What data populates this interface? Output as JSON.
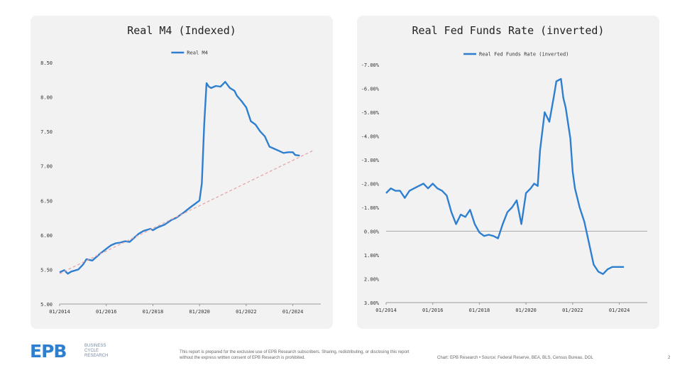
{
  "chart_data": [
    {
      "type": "line",
      "title": "Real M4 (Indexed)",
      "legend": "Real M4",
      "legend_position": "top-center",
      "grid": false,
      "x_ticks": [
        "01/2014",
        "01/2016",
        "01/2018",
        "01/2020",
        "01/2022",
        "01/2024"
      ],
      "y_ticks": [
        "8.50",
        "8.00",
        "7.50",
        "7.00",
        "6.50",
        "6.00",
        "5.50",
        "5.00"
      ],
      "ylim": [
        5.0,
        8.5
      ],
      "xlim": [
        2014.0,
        2025.2
      ],
      "colors": {
        "series": "#2f7fd1",
        "trend": "#e8a0a0"
      },
      "series": [
        {
          "name": "Real M4",
          "x": [
            2014.0,
            2014.2,
            2014.35,
            2014.5,
            2014.8,
            2015.0,
            2015.15,
            2015.4,
            2015.7,
            2016.0,
            2016.2,
            2016.4,
            2016.6,
            2016.8,
            2017.0,
            2017.2,
            2017.4,
            2017.6,
            2017.9,
            2018.0,
            2018.2,
            2018.5,
            2018.8,
            2019.0,
            2019.3,
            2019.6,
            2019.8,
            2020.0,
            2020.1,
            2020.2,
            2020.3,
            2020.4,
            2020.5,
            2020.7,
            2020.9,
            2021.1,
            2021.3,
            2021.5,
            2021.6,
            2021.8,
            2022.0,
            2022.2,
            2022.4,
            2022.6,
            2022.8,
            2023.0,
            2023.2,
            2023.4,
            2023.6,
            2023.8,
            2024.0,
            2024.1,
            2024.3
          ],
          "y": [
            5.46,
            5.49,
            5.44,
            5.47,
            5.5,
            5.57,
            5.65,
            5.63,
            5.72,
            5.8,
            5.85,
            5.88,
            5.89,
            5.91,
            5.9,
            5.96,
            6.02,
            6.06,
            6.09,
            6.07,
            6.11,
            6.15,
            6.22,
            6.25,
            6.32,
            6.4,
            6.45,
            6.5,
            6.75,
            7.6,
            8.2,
            8.15,
            8.13,
            8.16,
            8.15,
            8.22,
            8.13,
            8.09,
            8.02,
            7.94,
            7.85,
            7.65,
            7.6,
            7.5,
            7.43,
            7.28,
            7.25,
            7.22,
            7.19,
            7.2,
            7.2,
            7.16,
            7.15
          ]
        },
        {
          "name": "",
          "x": [
            2014.0,
            2024.9
          ],
          "y": [
            5.44,
            7.23
          ]
        }
      ]
    },
    {
      "type": "line",
      "title": "Real Fed Funds Rate (inverted)",
      "legend": "Real Fed Funds Rate (inverted)",
      "legend_position": "top-center",
      "grid": false,
      "inverted_y": true,
      "x_ticks": [
        "01/2014",
        "01/2016",
        "01/2018",
        "01/2020",
        "01/2022",
        "01/2024"
      ],
      "y_ticks": [
        "-7.00%",
        "-6.00%",
        "-5.00%",
        "-4.00%",
        "-3.00%",
        "-2.00%",
        "-1.00%",
        "0.00%",
        "1.00%",
        "2.00%",
        "3.00%"
      ],
      "ylim": [
        -7.0,
        3.0
      ],
      "xlim": [
        2014.0,
        2025.2
      ],
      "colors": {
        "series": "#2f7fd1",
        "zero_line": "#aaaaaa"
      },
      "series": [
        {
          "name": "Real Fed Funds Rate (inverted)",
          "x": [
            2014.0,
            2014.2,
            2014.4,
            2014.6,
            2014.8,
            2015.0,
            2015.2,
            2015.4,
            2015.6,
            2015.8,
            2016.0,
            2016.2,
            2016.4,
            2016.6,
            2016.8,
            2017.0,
            2017.2,
            2017.4,
            2017.6,
            2017.8,
            2018.0,
            2018.2,
            2018.4,
            2018.6,
            2018.8,
            2019.0,
            2019.2,
            2019.4,
            2019.6,
            2019.8,
            2020.0,
            2020.2,
            2020.35,
            2020.5,
            2020.6,
            2020.8,
            2021.0,
            2021.2,
            2021.3,
            2021.5,
            2021.6,
            2021.7,
            2021.9,
            2022.0,
            2022.1,
            2022.3,
            2022.5,
            2022.7,
            2022.9,
            2023.1,
            2023.3,
            2023.5,
            2023.7,
            2023.9,
            2024.0,
            2024.2
          ],
          "y": [
            -1.6,
            -1.8,
            -1.7,
            -1.7,
            -1.4,
            -1.7,
            -1.8,
            -1.9,
            -2.0,
            -1.8,
            -2.0,
            -1.8,
            -1.7,
            -1.5,
            -0.8,
            -0.3,
            -0.7,
            -0.6,
            -0.9,
            -0.3,
            0.05,
            0.2,
            0.15,
            0.2,
            0.3,
            -0.3,
            -0.8,
            -1.0,
            -1.3,
            -0.3,
            -1.6,
            -1.8,
            -2.0,
            -1.9,
            -3.4,
            -5.0,
            -4.6,
            -5.7,
            -6.3,
            -6.4,
            -5.6,
            -5.2,
            -3.9,
            -2.5,
            -1.8,
            -1.0,
            -0.4,
            0.5,
            1.4,
            1.7,
            1.8,
            1.6,
            1.5,
            1.5,
            1.5,
            1.5
          ]
        }
      ]
    }
  ],
  "footer": {
    "logo": "EPB",
    "logo_sub": [
      "BUSINESS",
      "CYCLE",
      "RESEARCH"
    ],
    "disclaimer": "This report is prepared for the exclusive use of EPB Research subscribers. Sharing, redistributing, or disclosing this report without the express written consent of EPB Research is prohibited.",
    "source": "Chart: EPB Research  •  Source: Federal Reserve, BEA, BLS, Census Bureau, DOL",
    "page": "2"
  }
}
